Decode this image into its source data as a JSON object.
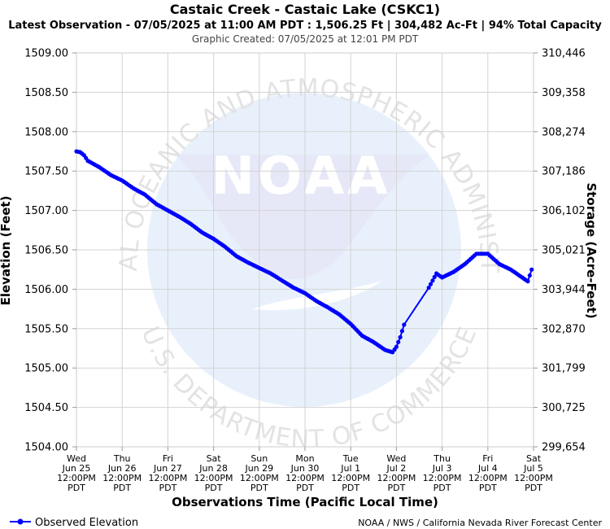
{
  "header": {
    "title": "Castaic Creek - Castaic Lake (CSKC1)",
    "subtitle": "Latest Observation - 07/05/2025 at 11:00 AM PDT : 1,506.25 Ft | 304,482 Ac-Ft | 94% Total Capacity",
    "created": "Graphic Created: 07/05/2025 at 12:01 PM PDT"
  },
  "watermark": {
    "logo": "NOAA",
    "top_text": "NATIONAL OCEANIC AND ATMOSPHERIC ADMINISTRATION",
    "bottom_text": "U.S. DEPARTMENT OF COMMERCE"
  },
  "legend": {
    "label": "Observed Elevation"
  },
  "credit": "NOAA / NWS / California Nevada River Forecast Center",
  "colors": {
    "series": "#0000ff",
    "grid": "#d3d3d3",
    "watermark": "#e8f1fb",
    "bird": "#e6e8f8"
  },
  "chart_data": {
    "type": "line",
    "xlabel": "Observations Time (Pacific Local Time)",
    "ylabel": "Elevation (Feet)",
    "ylabel_right": "Storage (Acre-Feet)",
    "ylim": [
      1504.0,
      1509.0
    ],
    "yticks": [
      "1509.00",
      "1508.50",
      "1508.00",
      "1507.50",
      "1507.00",
      "1506.50",
      "1506.00",
      "1505.50",
      "1505.00",
      "1504.50",
      "1504.00"
    ],
    "yticks_right": [
      "310,446",
      "309,358",
      "308,274",
      "307,186",
      "306,102",
      "305,021",
      "303,944",
      "302,870",
      "301,799",
      "300,725",
      "299,654"
    ],
    "xlim": [
      "06/25/2025 12:00 PM",
      "07/05/2025 12:00 PM"
    ],
    "xticks": [
      [
        "Wed",
        "Jun 25",
        "12:00PM",
        "PDT"
      ],
      [
        "Thu",
        "Jun 26",
        "12:00PM",
        "PDT"
      ],
      [
        "Fri",
        "Jun 27",
        "12:00PM",
        "PDT"
      ],
      [
        "Sat",
        "Jun 28",
        "12:00PM",
        "PDT"
      ],
      [
        "Sun",
        "Jun 29",
        "12:00PM",
        "PDT"
      ],
      [
        "Mon",
        "Jun 30",
        "12:00PM",
        "PDT"
      ],
      [
        "Tue",
        "Jul 1",
        "12:00PM",
        "PDT"
      ],
      [
        "Wed",
        "Jul 2",
        "12:00PM",
        "PDT"
      ],
      [
        "Thu",
        "Jul 3",
        "12:00PM",
        "PDT"
      ],
      [
        "Fri",
        "Jul 4",
        "12:00PM",
        "PDT"
      ],
      [
        "Sat",
        "Jul 5",
        "12:00PM",
        "PDT"
      ]
    ],
    "grid": true,
    "legend_position": "bottom-left",
    "series": [
      {
        "name": "Observed Elevation",
        "x": [
          "06/25 12:00 PM",
          "06/25 02:00 PM",
          "06/25 04:00 PM",
          "06/25 06:00 PM",
          "06/26 12:00 AM",
          "06/26 06:00 AM",
          "06/26 12:00 PM",
          "06/26 06:00 PM",
          "06/27 12:00 AM",
          "06/27 06:00 AM",
          "06/27 12:00 PM",
          "06/27 06:00 PM",
          "06/28 12:00 AM",
          "06/28 06:00 AM",
          "06/28 12:00 PM",
          "06/28 06:00 PM",
          "06/29 12:00 AM",
          "06/29 06:00 AM",
          "06/29 12:00 PM",
          "06/29 06:00 PM",
          "06/30 12:00 AM",
          "06/30 06:00 AM",
          "06/30 12:00 PM",
          "06/30 06:00 PM",
          "07/01 12:00 AM",
          "07/01 06:00 AM",
          "07/01 12:00 PM",
          "07/01 06:00 PM",
          "07/02 12:00 AM",
          "07/02 06:00 AM",
          "07/02 10:00 AM",
          "07/02 12:00 PM",
          "07/02 02:00 PM",
          "07/02 04:00 PM",
          "07/03 05:00 AM",
          "07/03 09:00 AM",
          "07/03 12:00 PM",
          "07/03 06:00 PM",
          "07/04 12:00 AM",
          "07/04 06:00 AM",
          "07/04 12:00 PM",
          "07/04 06:00 PM",
          "07/05 12:00 AM",
          "07/05 06:00 AM",
          "07/05 09:00 AM",
          "07/05 11:00 AM"
        ],
        "y": [
          1507.75,
          1507.74,
          1507.7,
          1507.63,
          1507.55,
          1507.45,
          1507.38,
          1507.28,
          1507.2,
          1507.08,
          1507.0,
          1506.92,
          1506.83,
          1506.72,
          1506.64,
          1506.54,
          1506.42,
          1506.34,
          1506.27,
          1506.2,
          1506.11,
          1506.02,
          1505.95,
          1505.85,
          1505.77,
          1505.68,
          1505.56,
          1505.41,
          1505.33,
          1505.23,
          1505.2,
          1505.27,
          1505.39,
          1505.55,
          1506.02,
          1506.2,
          1506.15,
          1506.22,
          1506.32,
          1506.45,
          1506.45,
          1506.32,
          1506.25,
          1506.15,
          1506.1,
          1506.25
        ]
      }
    ]
  }
}
